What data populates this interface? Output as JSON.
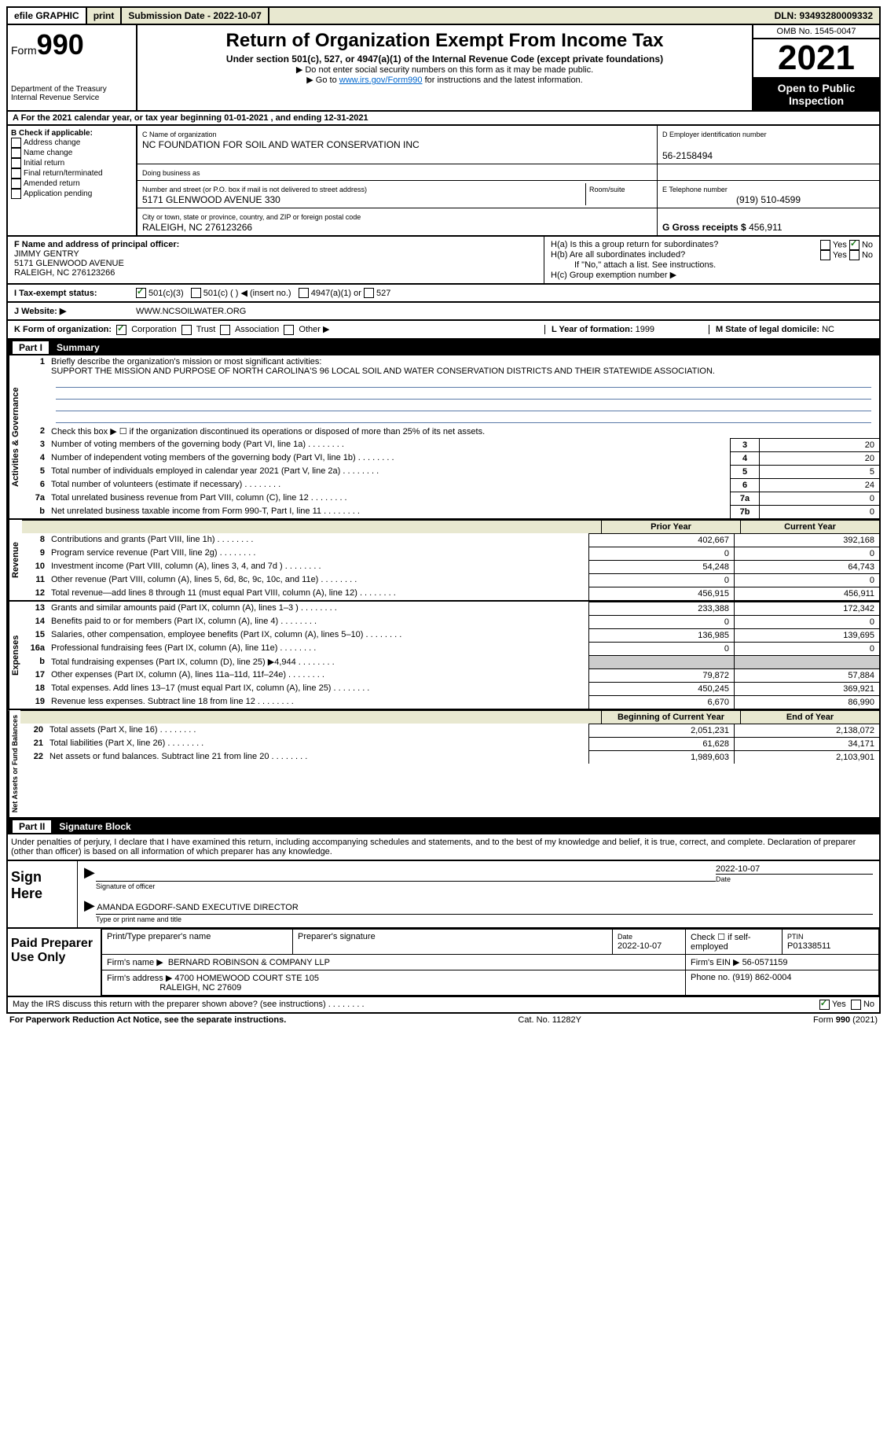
{
  "topbar": {
    "efile_label": "efile GRAPHIC",
    "print_label": "print",
    "submission_label": "Submission Date - 2022-10-07",
    "dln_label": "DLN: 93493280009332"
  },
  "header": {
    "form_label": "Form",
    "form_number": "990",
    "dept": "Department of the Treasury",
    "irs": "Internal Revenue Service",
    "title": "Return of Organization Exempt From Income Tax",
    "subtitle": "Under section 501(c), 527, or 4947(a)(1) of the Internal Revenue Code (except private foundations)",
    "note1": "▶ Do not enter social security numbers on this form as it may be made public.",
    "note2_pre": "▶ Go to ",
    "note2_link": "www.irs.gov/Form990",
    "note2_post": " for instructions and the latest information.",
    "omb": "OMB No. 1545-0047",
    "year": "2021",
    "open_pub": "Open to Public Inspection"
  },
  "row_a": "A For the 2021 calendar year, or tax year beginning 01-01-2021   , and ending 12-31-2021",
  "col_b": {
    "heading": "B Check if applicable:",
    "items": [
      "Address change",
      "Name change",
      "Initial return",
      "Final return/terminated",
      "Amended return",
      "Application pending"
    ]
  },
  "col_c": {
    "name_label": "C Name of organization",
    "name": "NC FOUNDATION FOR SOIL AND WATER CONSERVATION INC",
    "dba_label": "Doing business as",
    "addr_label": "Number and street (or P.O. box if mail is not delivered to street address)",
    "room_label": "Room/suite",
    "addr": "5171 GLENWOOD AVENUE 330",
    "city_label": "City or town, state or province, country, and ZIP or foreign postal code",
    "city": "RALEIGH, NC  276123266"
  },
  "col_d": {
    "label": "D Employer identification number",
    "value": "56-2158494"
  },
  "col_e": {
    "label": "E Telephone number",
    "value": "(919) 510-4599"
  },
  "col_g": {
    "label": "G Gross receipts $",
    "value": "456,911"
  },
  "col_f": {
    "label": "F  Name and address of principal officer:",
    "name": "JIMMY GENTRY",
    "addr1": "5171 GLENWOOD AVENUE",
    "addr2": "RALEIGH, NC  276123266"
  },
  "col_h": {
    "a": "H(a)  Is this a group return for subordinates?",
    "b": "H(b)  Are all subordinates included?",
    "b_note": "If \"No,\" attach a list. See instructions.",
    "c": "H(c)  Group exemption number ▶",
    "yes": "Yes",
    "no": "No"
  },
  "row_i": {
    "label": "I     Tax-exempt status:",
    "opt1": "501(c)(3)",
    "opt2": "501(c) (  ) ◀ (insert no.)",
    "opt3": "4947(a)(1) or",
    "opt4": "527"
  },
  "row_j": {
    "label": "J    Website: ▶",
    "value": "WWW.NCSOILWATER.ORG"
  },
  "row_k": {
    "label": "K Form of organization:",
    "corp": "Corporation",
    "trust": "Trust",
    "assoc": "Association",
    "other": "Other ▶",
    "l_label": "L Year of formation:",
    "l_val": "1999",
    "m_label": "M State of legal domicile:",
    "m_val": "NC"
  },
  "part1": {
    "label": "Part I",
    "title": "Summary"
  },
  "summary": {
    "sec1_label": "Activities & Governance",
    "line1_label": "Briefly describe the organization's mission or most significant activities:",
    "line1_text": "SUPPORT THE MISSION AND PURPOSE OF NORTH CAROLINA'S 96 LOCAL SOIL AND WATER CONSERVATION DISTRICTS AND THEIR STATEWIDE ASSOCIATION.",
    "line2": "Check this box ▶ ☐  if the organization discontinued its operations or disposed of more than 25% of its net assets.",
    "lines": [
      {
        "n": "3",
        "d": "Number of voting members of the governing body (Part VI, line 1a)",
        "box": "3",
        "v": "20"
      },
      {
        "n": "4",
        "d": "Number of independent voting members of the governing body (Part VI, line 1b)",
        "box": "4",
        "v": "20"
      },
      {
        "n": "5",
        "d": "Total number of individuals employed in calendar year 2021 (Part V, line 2a)",
        "box": "5",
        "v": "5"
      },
      {
        "n": "6",
        "d": "Total number of volunteers (estimate if necessary)",
        "box": "6",
        "v": "24"
      },
      {
        "n": "7a",
        "d": "Total unrelated business revenue from Part VIII, column (C), line 12",
        "box": "7a",
        "v": "0"
      },
      {
        "n": "b",
        "d": "Net unrelated business taxable income from Form 990-T, Part I, line 11",
        "box": "7b",
        "v": "0"
      }
    ],
    "sec2_label": "Revenue",
    "col_prior": "Prior Year",
    "col_curr": "Current Year",
    "rev": [
      {
        "n": "8",
        "d": "Contributions and grants (Part VIII, line 1h)",
        "p": "402,667",
        "c": "392,168"
      },
      {
        "n": "9",
        "d": "Program service revenue (Part VIII, line 2g)",
        "p": "0",
        "c": "0"
      },
      {
        "n": "10",
        "d": "Investment income (Part VIII, column (A), lines 3, 4, and 7d )",
        "p": "54,248",
        "c": "64,743"
      },
      {
        "n": "11",
        "d": "Other revenue (Part VIII, column (A), lines 5, 6d, 8c, 9c, 10c, and 11e)",
        "p": "0",
        "c": "0"
      },
      {
        "n": "12",
        "d": "Total revenue—add lines 8 through 11 (must equal Part VIII, column (A), line 12)",
        "p": "456,915",
        "c": "456,911"
      }
    ],
    "sec3_label": "Expenses",
    "exp": [
      {
        "n": "13",
        "d": "Grants and similar amounts paid (Part IX, column (A), lines 1–3 )",
        "p": "233,388",
        "c": "172,342"
      },
      {
        "n": "14",
        "d": "Benefits paid to or for members (Part IX, column (A), line 4)",
        "p": "0",
        "c": "0"
      },
      {
        "n": "15",
        "d": "Salaries, other compensation, employee benefits (Part IX, column (A), lines 5–10)",
        "p": "136,985",
        "c": "139,695"
      },
      {
        "n": "16a",
        "d": "Professional fundraising fees (Part IX, column (A), line 11e)",
        "p": "0",
        "c": "0"
      },
      {
        "n": "b",
        "d": "Total fundraising expenses (Part IX, column (D), line 25) ▶4,944",
        "p": "",
        "c": "",
        "shaded": true
      },
      {
        "n": "17",
        "d": "Other expenses (Part IX, column (A), lines 11a–11d, 11f–24e)",
        "p": "79,872",
        "c": "57,884"
      },
      {
        "n": "18",
        "d": "Total expenses. Add lines 13–17 (must equal Part IX, column (A), line 25)",
        "p": "450,245",
        "c": "369,921"
      },
      {
        "n": "19",
        "d": "Revenue less expenses. Subtract line 18 from line 12",
        "p": "6,670",
        "c": "86,990"
      }
    ],
    "sec4_label": "Net Assets or Fund Balances",
    "col_beg": "Beginning of Current Year",
    "col_end": "End of Year",
    "net": [
      {
        "n": "20",
        "d": "Total assets (Part X, line 16)",
        "p": "2,051,231",
        "c": "2,138,072"
      },
      {
        "n": "21",
        "d": "Total liabilities (Part X, line 26)",
        "p": "61,628",
        "c": "34,171"
      },
      {
        "n": "22",
        "d": "Net assets or fund balances. Subtract line 21 from line 20",
        "p": "1,989,603",
        "c": "2,103,901"
      }
    ]
  },
  "part2": {
    "label": "Part II",
    "title": "Signature Block"
  },
  "sig": {
    "jurat": "Under penalties of perjury, I declare that I have examined this return, including accompanying schedules and statements, and to the best of my knowledge and belief, it is true, correct, and complete. Declaration of preparer (other than officer) is based on all information of which preparer has any knowledge.",
    "sign_here": "Sign Here",
    "sig_officer": "Signature of officer",
    "date_val": "2022-10-07",
    "date_lbl": "Date",
    "name_title": "AMANDA EGDORF-SAND  EXECUTIVE DIRECTOR",
    "name_lbl": "Type or print name and title",
    "paid_label": "Paid Preparer Use Only",
    "prep_name_lbl": "Print/Type preparer's name",
    "prep_sig_lbl": "Preparer's signature",
    "prep_date_lbl": "Date",
    "prep_date": "2022-10-07",
    "self_emp": "Check ☐ if self-employed",
    "ptin_lbl": "PTIN",
    "ptin": "P01338511",
    "firm_name_lbl": "Firm's name      ▶",
    "firm_name": "BERNARD ROBINSON & COMPANY LLP",
    "firm_ein_lbl": "Firm's EIN ▶",
    "firm_ein": "56-0571159",
    "firm_addr_lbl": "Firm's address ▶",
    "firm_addr1": "4700 HOMEWOOD COURT STE 105",
    "firm_addr2": "RALEIGH, NC  27609",
    "phone_lbl": "Phone no.",
    "phone": "(919) 862-0004"
  },
  "discuss": {
    "q": "May the IRS discuss this return with the preparer shown above? (see instructions)",
    "yes": "Yes",
    "no": "No"
  },
  "footer": {
    "left": "For Paperwork Reduction Act Notice, see the separate instructions.",
    "mid": "Cat. No. 11282Y",
    "right": "Form 990 (2021)"
  }
}
